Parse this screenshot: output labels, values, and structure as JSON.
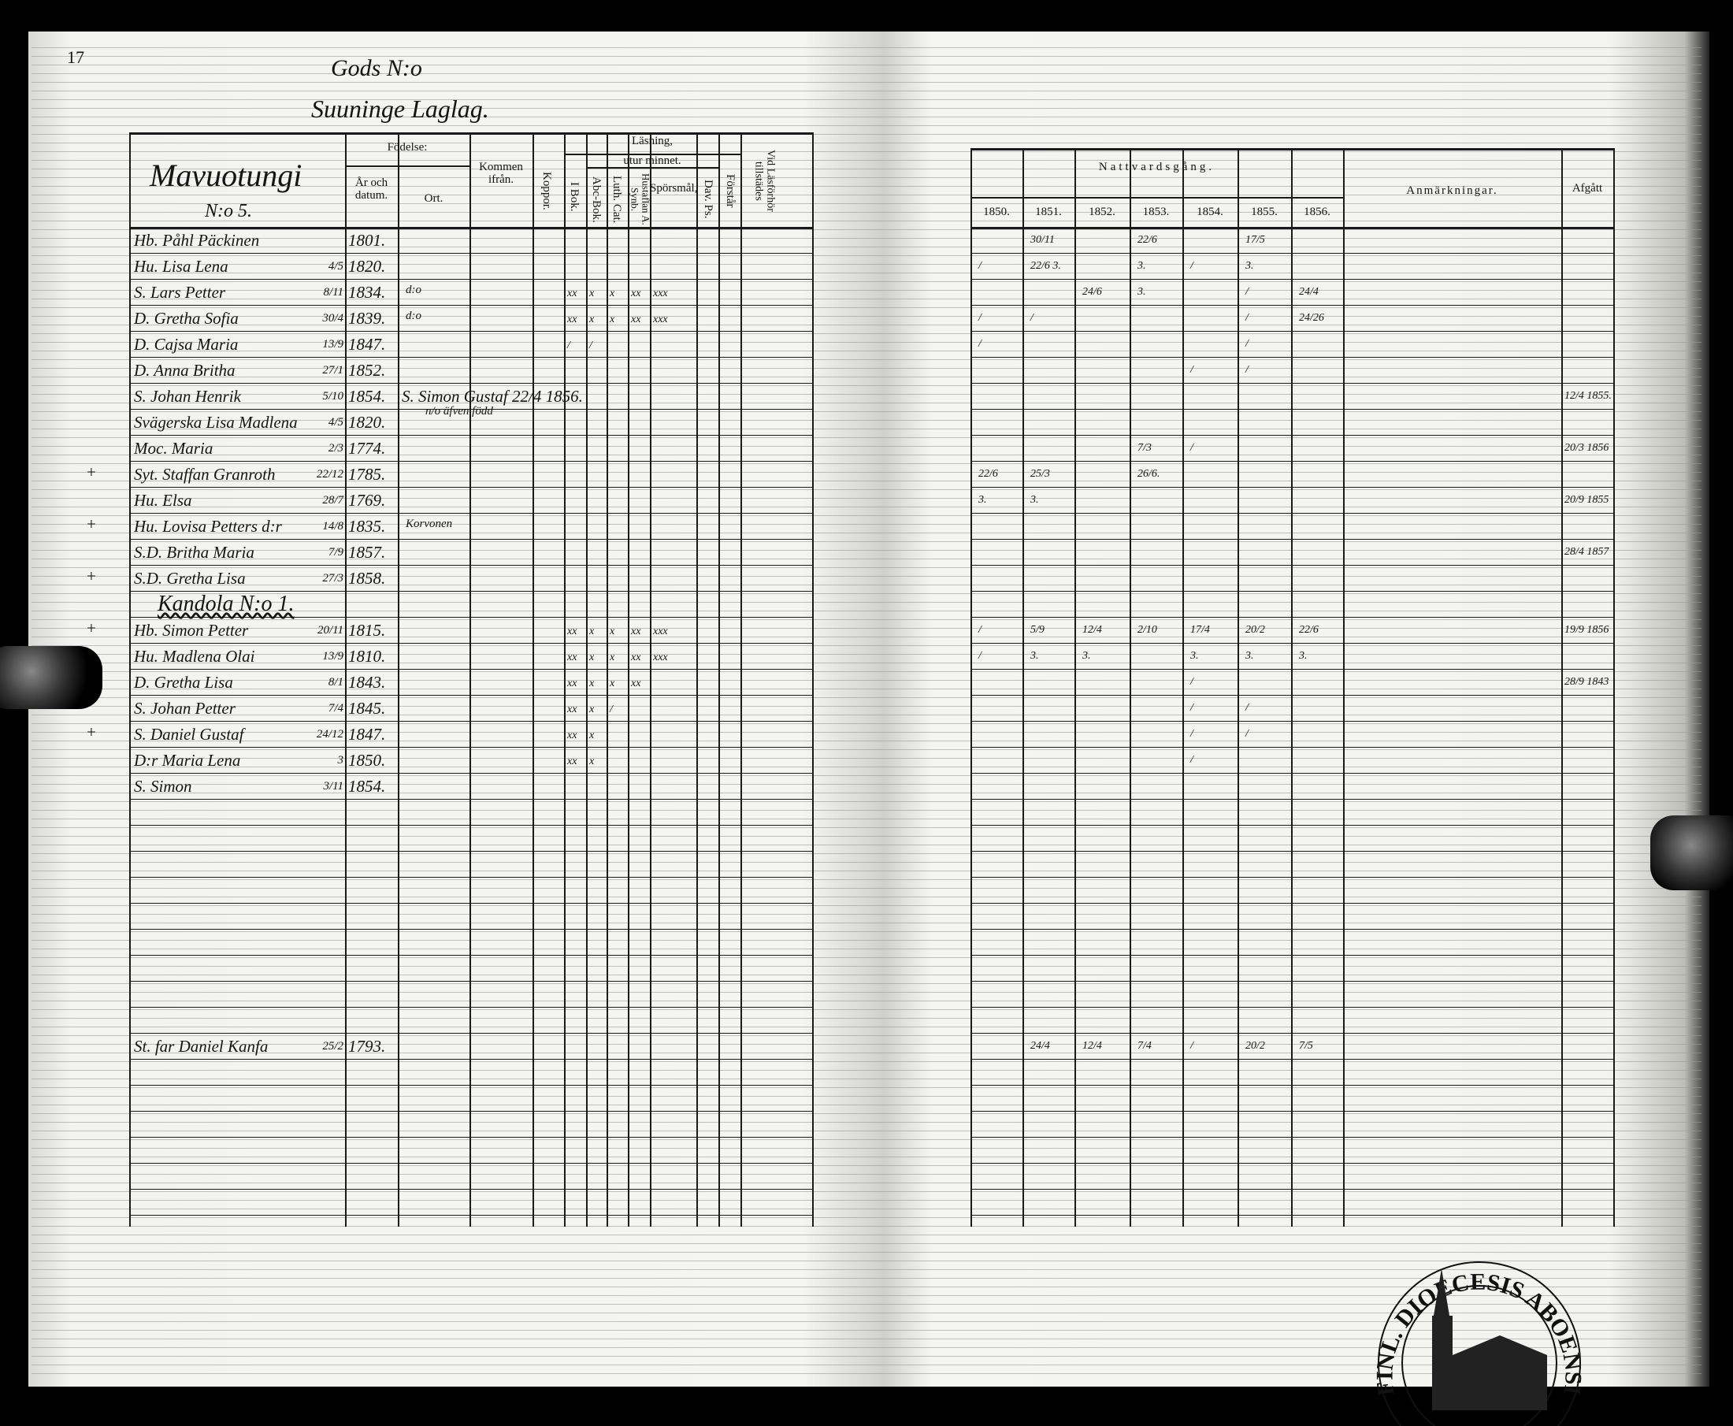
{
  "page_number": "17",
  "title": {
    "line1": "Gods N:o",
    "line2": "Suuninge Laglag."
  },
  "left_headers": {
    "village": "Mavuotungi",
    "village_no": "N:o 5.",
    "fodelse": "Födelse:",
    "ar_och_datum": "År och datum.",
    "ort": "Ort.",
    "kommen_ifran": "Kommen ifrån.",
    "koppor": "Koppor.",
    "lasning": "Läsning,",
    "utur_minnet": "utur minnet.",
    "i_bok": "I Bok.",
    "abc_bok": "Abc-Bok.",
    "luth_cat": "Luth. Cat.",
    "hustaflan": "Hustaflan A. Synb.",
    "sporsmal": "Spörsmål,",
    "dav_ps": "Dav. Ps.",
    "forstar": "Förstår",
    "vid_lasforhor": "Vid Läsförhör tillstädes"
  },
  "right_headers": {
    "nattvardsgang": "Nattvardsgång.",
    "years": [
      "1850.",
      "1851.",
      "1852.",
      "1853.",
      "1854.",
      "1855.",
      "1856."
    ],
    "anmarkningar": "Anmärkningar.",
    "afgatt": "Afgått"
  },
  "rows": [
    {
      "name": "Hb. Påhl Päckinen",
      "date": "",
      "year": "1801.",
      "communion": [
        "",
        "30/11",
        "",
        "22/6",
        "",
        "17/5",
        ""
      ],
      "afgatt": ""
    },
    {
      "name": "Hu. Lisa Lena",
      "date": "4/5",
      "year": "1820.",
      "communion": [
        "/",
        "22/6 3.",
        "",
        "3.",
        "/",
        "3.",
        ""
      ],
      "afgatt": ""
    },
    {
      "name": "S. Lars Petter",
      "date": "8/11",
      "year": "1834.",
      "ort": "d:o",
      "reading": [
        "xx",
        "x",
        "x",
        "xx",
        "xxx"
      ],
      "communion": [
        "",
        "",
        "24/6",
        "3.",
        "",
        "/",
        "24/4"
      ],
      "afgatt": ""
    },
    {
      "name": "D. Gretha Sofia",
      "date": "30/4",
      "year": "1839.",
      "ort": "d:o",
      "reading": [
        "xx",
        "x",
        "x",
        "xx",
        "xxx"
      ],
      "communion": [
        "/",
        "/",
        "",
        "",
        "",
        "/",
        "24/26"
      ],
      "afgatt": ""
    },
    {
      "name": "D. Cajsa Maria",
      "date": "13/9",
      "year": "1847.",
      "reading": [
        "/",
        "/",
        "",
        "",
        ""
      ],
      "communion": [
        "/",
        "",
        "",
        "",
        "",
        "/",
        ""
      ],
      "afgatt": ""
    },
    {
      "name": "D. Anna Britha",
      "date": "27/1",
      "year": "1852.",
      "communion": [
        "",
        "",
        "",
        "",
        "/",
        "/",
        ""
      ],
      "afgatt": ""
    },
    {
      "name": "S. Johan Henrik",
      "date": "5/10",
      "year": "1854.",
      "note": "S. Simon Gustaf 22/4 1856.",
      "note2": "n/o äfven född",
      "communion": [
        "",
        "",
        "",
        "",
        "",
        "",
        ""
      ],
      "afgatt": "12/4 1855."
    },
    {
      "name": "Svägerska Lisa Madlena",
      "date": "4/5",
      "year": "1820.",
      "communion": [
        "",
        "",
        "",
        "",
        "",
        "",
        ""
      ],
      "afgatt": ""
    },
    {
      "name": "Moc. Maria",
      "date": "2/3",
      "year": "1774.",
      "communion": [
        "",
        "",
        "",
        "7/3",
        "/",
        "",
        ""
      ],
      "afgatt": "20/3 1856"
    },
    {
      "name": "Syt. Staffan Granroth",
      "date": "22/12",
      "year": "1785.",
      "communion": [
        "22/6",
        "25/3",
        "",
        "26/6.",
        "",
        "",
        ""
      ],
      "afgatt": ""
    },
    {
      "name": "Hu. Elsa",
      "date": "28/7",
      "year": "1769.",
      "communion": [
        "3.",
        "3.",
        "",
        "",
        "",
        "",
        ""
      ],
      "afgatt": "20/9 1855"
    },
    {
      "name": "Hu. Lovisa Petters d:r",
      "date": "14/8",
      "year": "1835.",
      "ort": "Korvonen",
      "communion": [
        "",
        "",
        "",
        "",
        "",
        "",
        ""
      ],
      "afgatt": ""
    },
    {
      "name": "S.D. Britha Maria",
      "date": "7/9",
      "year": "1857.",
      "communion": [
        "",
        "",
        "",
        "",
        "",
        "",
        ""
      ],
      "afgatt": "28/4 1857"
    },
    {
      "name": "S.D. Gretha Lisa",
      "date": "27/3",
      "year": "1858.",
      "communion": [
        "",
        "",
        "",
        "",
        "",
        "",
        ""
      ],
      "afgatt": ""
    },
    {
      "name": "Kandola N:o 1.",
      "section": true
    },
    {
      "name": "Hb. Simon Petter",
      "date": "20/11",
      "year": "1815.",
      "reading": [
        "xx",
        "x",
        "x",
        "xx",
        "xxx"
      ],
      "communion": [
        "/",
        "5/9",
        "12/4",
        "2/10",
        "17/4",
        "20/2",
        "22/6"
      ],
      "afgatt": "19/9 1856"
    },
    {
      "name": "Hu. Madlena Olai",
      "date": "13/9",
      "year": "1810.",
      "reading": [
        "xx",
        "x",
        "x",
        "xx",
        "xxx"
      ],
      "communion": [
        "/",
        "3.",
        "3.",
        "",
        "3.",
        "3.",
        "3."
      ],
      "afgatt": ""
    },
    {
      "name": "D. Gretha Lisa",
      "date": "8/1",
      "year": "1843.",
      "reading": [
        "xx",
        "x",
        "x",
        "xx",
        ""
      ],
      "communion": [
        "",
        "",
        "",
        "",
        "/",
        "",
        ""
      ],
      "afgatt": "28/9 1843"
    },
    {
      "name": "S. Johan Petter",
      "date": "7/4",
      "year": "1845.",
      "reading": [
        "xx",
        "x",
        "/",
        "",
        ""
      ],
      "communion": [
        "",
        "",
        "",
        "",
        "/",
        "/",
        ""
      ],
      "afgatt": ""
    },
    {
      "name": "S. Daniel Gustaf",
      "date": "24/12",
      "year": "1847.",
      "reading": [
        "xx",
        "x",
        "",
        "",
        ""
      ],
      "communion": [
        "",
        "",
        "",
        "",
        "/",
        "/",
        ""
      ],
      "afgatt": ""
    },
    {
      "name": "D:r Maria Lena",
      "date": "3",
      "year": "1850.",
      "reading": [
        "xx",
        "x",
        "",
        "",
        ""
      ],
      "communion": [
        "",
        "",
        "",
        "",
        "/",
        "",
        ""
      ],
      "afgatt": ""
    },
    {
      "name": "S. Simon",
      "date": "3/11",
      "year": "1854.",
      "communion": [
        "",
        "",
        "",
        "",
        "",
        "",
        ""
      ],
      "afgatt": ""
    }
  ],
  "extra_row": {
    "name": "St. far Daniel Kanfa",
    "date": "25/2",
    "year": "1793.",
    "communion": [
      "",
      "24/4",
      "12/4",
      "7/4",
      "/",
      "20/2",
      "7/5"
    ]
  },
  "margin_marks": [
    "+",
    "+",
    "+",
    "+",
    "+",
    "+"
  ],
  "stamp": {
    "text": "FINL. DIOECESIS ABOENSIS",
    "icon": "church-icon"
  }
}
